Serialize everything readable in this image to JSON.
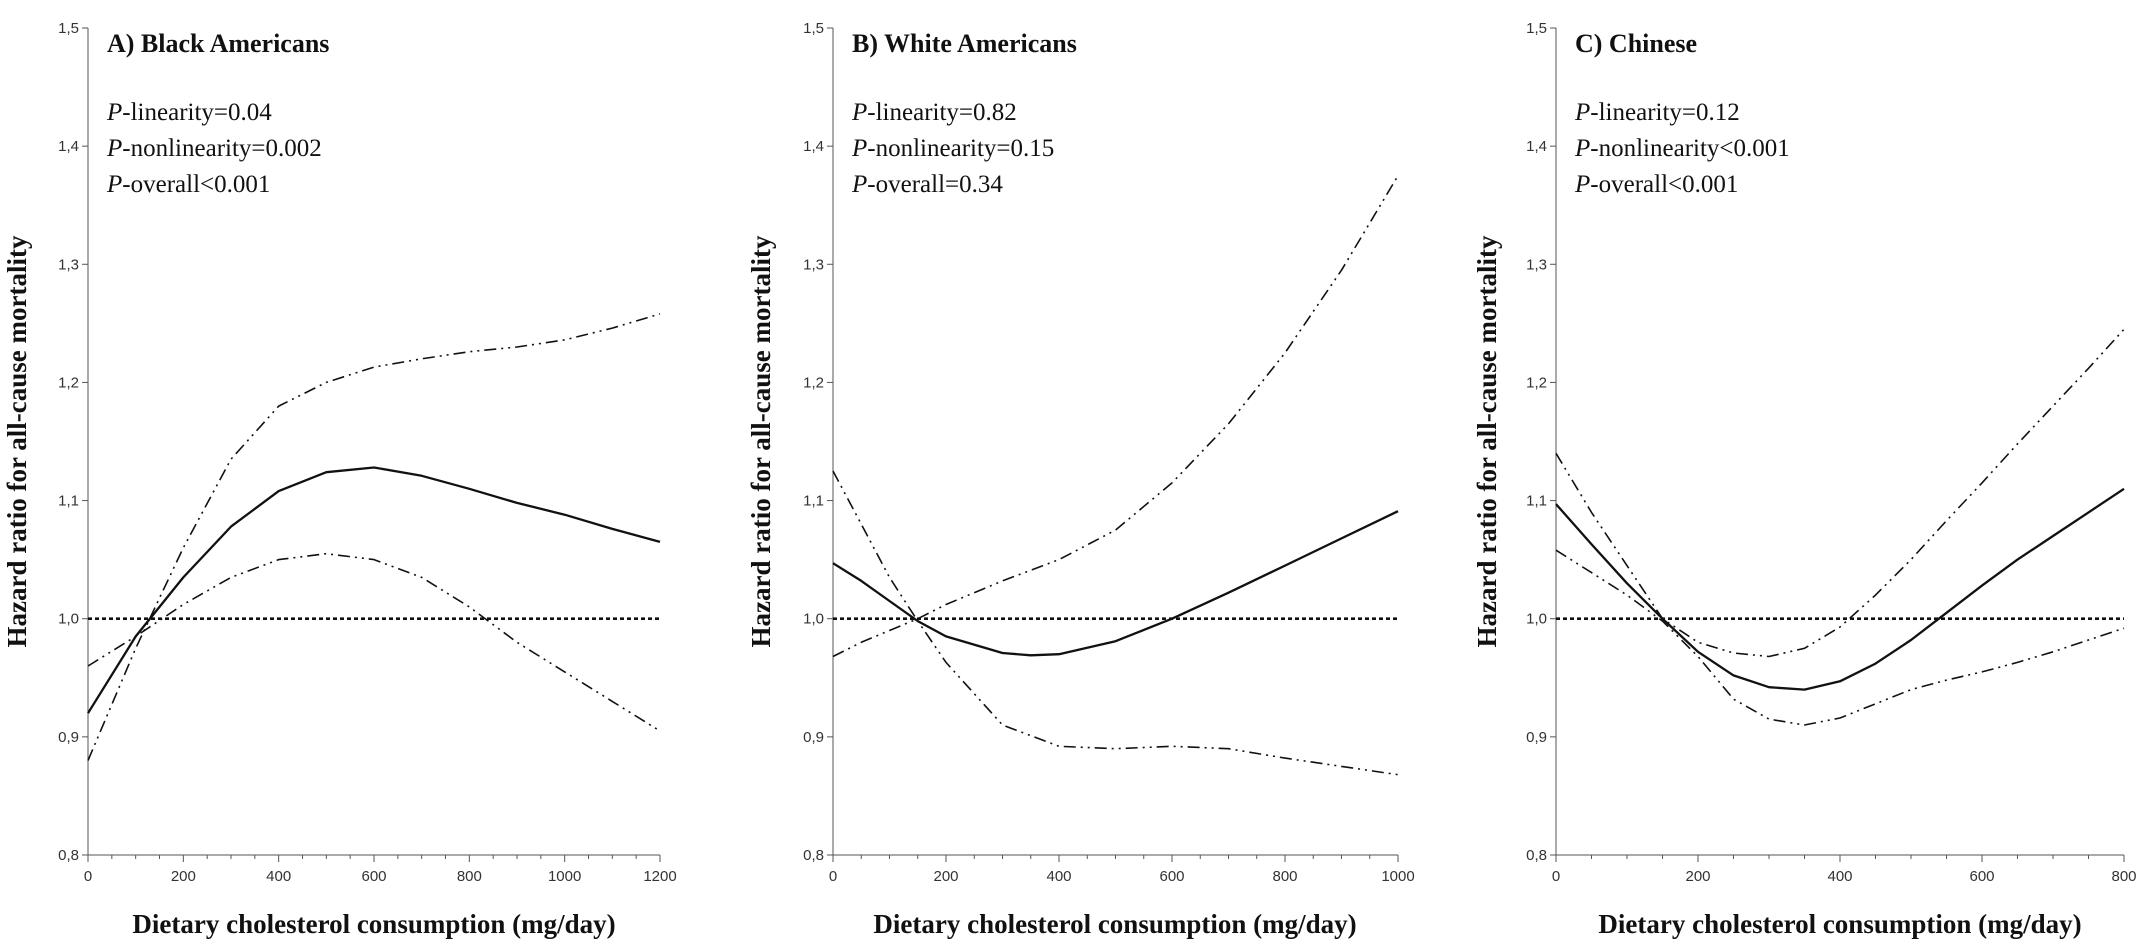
{
  "chart_data": [
    {
      "type": "line",
      "title": "A) Black Americans",
      "annotations": [
        {
          "italic": "P",
          "text": "-linearity=0.04"
        },
        {
          "italic": "P",
          "text": "-nonlinearity=0.002"
        },
        {
          "italic": "P",
          "text": "-overall<0.001"
        }
      ],
      "xlabel": "Dietary cholesterol consumption (mg/day)",
      "ylabel": "Hazard ratio for all-cause mortality",
      "xlim": [
        0,
        1200
      ],
      "ylim": [
        0.8,
        1.5
      ],
      "xticks": [
        0,
        200,
        400,
        600,
        800,
        1000,
        1200
      ],
      "xtick_labels": [
        "0",
        "200",
        "400",
        "600",
        "800",
        "1000",
        "1200"
      ],
      "yticks": [
        0.8,
        0.9,
        1.0,
        1.1,
        1.2,
        1.3,
        1.4,
        1.5
      ],
      "ytick_labels": [
        "0,8",
        "0,9",
        "1,0",
        "1,1",
        "1,2",
        "1,3",
        "1,4",
        "1,5"
      ],
      "reference_y": 1.0,
      "series": [
        {
          "style": "solid",
          "x": [
            0,
            100,
            200,
            300,
            400,
            500,
            600,
            700,
            800,
            900,
            1000,
            1100,
            1200
          ],
          "y": [
            0.92,
            0.985,
            1.035,
            1.078,
            1.108,
            1.124,
            1.128,
            1.121,
            1.11,
            1.098,
            1.088,
            1.076,
            1.065
          ]
        },
        {
          "style": "dashdot",
          "x": [
            0,
            100,
            200,
            300,
            400,
            500,
            600,
            700,
            800,
            900,
            1000,
            1100,
            1200
          ],
          "y": [
            0.88,
            0.975,
            1.06,
            1.135,
            1.18,
            1.2,
            1.213,
            1.22,
            1.226,
            1.23,
            1.236,
            1.246,
            1.258
          ]
        },
        {
          "style": "dashdot",
          "x": [
            0,
            100,
            200,
            300,
            400,
            500,
            600,
            700,
            800,
            900,
            1000,
            1100,
            1200
          ],
          "y": [
            0.96,
            0.985,
            1.012,
            1.035,
            1.05,
            1.055,
            1.05,
            1.035,
            1.01,
            0.98,
            0.955,
            0.93,
            0.905
          ]
        }
      ]
    },
    {
      "type": "line",
      "title": "B) White Americans",
      "annotations": [
        {
          "italic": "P",
          "text": "-linearity=0.82"
        },
        {
          "italic": "P",
          "text": "-nonlinearity=0.15"
        },
        {
          "italic": "P",
          "text": "-overall=0.34"
        }
      ],
      "xlabel": "Dietary cholesterol consumption (mg/day)",
      "ylabel": "Hazard ratio for all-cause mortality",
      "xlim": [
        0,
        1000
      ],
      "ylim": [
        0.8,
        1.5
      ],
      "xticks": [
        0,
        200,
        400,
        600,
        800,
        1000
      ],
      "xtick_labels": [
        "0",
        "200",
        "400",
        "600",
        "800",
        "1000"
      ],
      "yticks": [
        0.8,
        0.9,
        1.0,
        1.1,
        1.2,
        1.3,
        1.4,
        1.5
      ],
      "ytick_labels": [
        "0,8",
        "0,9",
        "1,0",
        "1,1",
        "1,2",
        "1,3",
        "1,4",
        "1,5"
      ],
      "reference_y": 1.0,
      "series": [
        {
          "style": "solid",
          "x": [
            0,
            50,
            100,
            150,
            200,
            300,
            350,
            400,
            500,
            600,
            700,
            800,
            900,
            1000
          ],
          "y": [
            1.047,
            1.032,
            1.015,
            0.998,
            0.985,
            0.971,
            0.969,
            0.97,
            0.981,
            1.0,
            1.022,
            1.045,
            1.068,
            1.091
          ]
        },
        {
          "style": "dashdot",
          "x": [
            0,
            50,
            100,
            150,
            200,
            300,
            400,
            500,
            600,
            700,
            800,
            900,
            1000
          ],
          "y": [
            1.125,
            1.08,
            1.035,
            0.998,
            0.963,
            0.91,
            0.892,
            0.89,
            0.892,
            0.89,
            0.882,
            0.875,
            0.868
          ]
        },
        {
          "style": "dashdot",
          "x": [
            0,
            50,
            100,
            150,
            200,
            300,
            400,
            500,
            600,
            700,
            800,
            900,
            1000
          ],
          "y": [
            0.968,
            0.98,
            0.99,
            1.0,
            1.012,
            1.032,
            1.05,
            1.075,
            1.115,
            1.165,
            1.225,
            1.295,
            1.375
          ]
        }
      ]
    },
    {
      "type": "line",
      "title": "C) Chinese",
      "annotations": [
        {
          "italic": "P",
          "text": "-linearity=0.12"
        },
        {
          "italic": "P",
          "text": "-nonlinearity<0.001"
        },
        {
          "italic": "P",
          "text": "-overall<0.001"
        }
      ],
      "xlabel": "Dietary cholesterol consumption (mg/day)",
      "ylabel": "Hazard ratio for all-cause mortality",
      "xlim": [
        0,
        800
      ],
      "ylim": [
        0.8,
        1.5
      ],
      "xticks": [
        0,
        200,
        400,
        600,
        800
      ],
      "xtick_labels": [
        "0",
        "200",
        "400",
        "600",
        "800"
      ],
      "yticks": [
        0.8,
        0.9,
        1.0,
        1.1,
        1.2,
        1.3,
        1.4,
        1.5
      ],
      "ytick_labels": [
        "0,8",
        "0,9",
        "1,0",
        "1,1",
        "1,2",
        "1,3",
        "1,4",
        "1,5"
      ],
      "reference_y": 1.0,
      "series": [
        {
          "style": "solid",
          "x": [
            0,
            50,
            100,
            150,
            200,
            250,
            300,
            350,
            400,
            450,
            500,
            550,
            600,
            650,
            700,
            750,
            800
          ],
          "y": [
            1.097,
            1.063,
            1.03,
            1.0,
            0.972,
            0.952,
            0.942,
            0.94,
            0.947,
            0.962,
            0.982,
            1.005,
            1.028,
            1.05,
            1.07,
            1.09,
            1.11
          ]
        },
        {
          "style": "dashdot",
          "x": [
            0,
            50,
            100,
            150,
            200,
            250,
            300,
            350,
            400,
            450,
            500,
            550,
            600,
            650,
            700,
            750,
            800
          ],
          "y": [
            1.058,
            1.039,
            1.02,
            0.998,
            0.968,
            0.932,
            0.915,
            0.91,
            0.916,
            0.928,
            0.94,
            0.948,
            0.955,
            0.963,
            0.972,
            0.982,
            0.992
          ]
        },
        {
          "style": "dashdot",
          "x": [
            0,
            50,
            100,
            150,
            200,
            250,
            300,
            350,
            400,
            450,
            500,
            550,
            600,
            650,
            700,
            750,
            800
          ],
          "y": [
            1.14,
            1.09,
            1.045,
            1.0,
            0.98,
            0.971,
            0.968,
            0.975,
            0.993,
            1.02,
            1.05,
            1.083,
            1.115,
            1.148,
            1.18,
            1.212,
            1.245
          ]
        }
      ]
    }
  ]
}
